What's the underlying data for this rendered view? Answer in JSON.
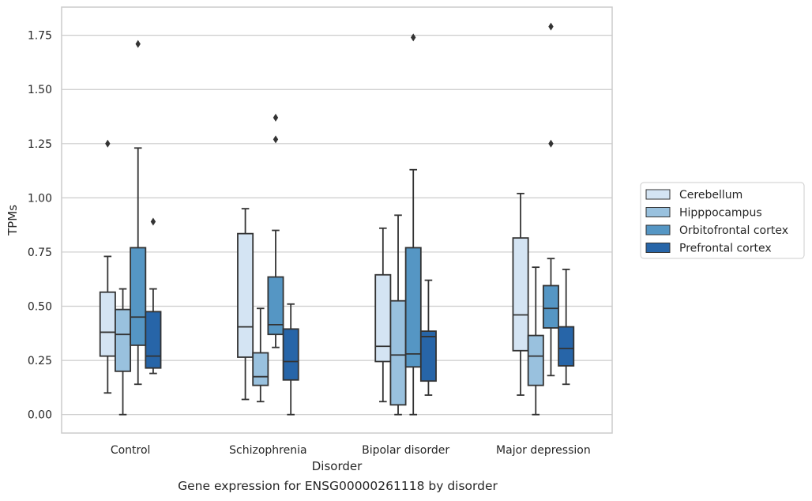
{
  "caption": "Gene expression for ENSG00000261118 by disorder",
  "chart_data": {
    "type": "box",
    "xlabel": "Disorder",
    "ylabel": "TPMs",
    "ylim": [
      -0.085,
      1.88
    ],
    "yticks": [
      "0.00",
      "0.25",
      "0.50",
      "0.75",
      "1.00",
      "1.25",
      "1.50",
      "1.75"
    ],
    "grid": "horizontal",
    "legend_position": "right",
    "categories": [
      "Control",
      "Schizophrenia",
      "Bipolar disorder",
      "Major depression"
    ],
    "series": [
      {
        "name": "Cerebellum",
        "color": "#d4e4f3",
        "boxes": [
          {
            "whislo": 0.1,
            "q1": 0.27,
            "med": 0.38,
            "q3": 0.565,
            "whishi": 0.73,
            "fliers": [
              1.25
            ]
          },
          {
            "whislo": 0.07,
            "q1": 0.265,
            "med": 0.405,
            "q3": 0.835,
            "whishi": 0.95,
            "fliers": []
          },
          {
            "whislo": 0.06,
            "q1": 0.245,
            "med": 0.315,
            "q3": 0.645,
            "whishi": 0.86,
            "fliers": []
          },
          {
            "whislo": 0.09,
            "q1": 0.295,
            "med": 0.46,
            "q3": 0.815,
            "whishi": 1.02,
            "fliers": []
          }
        ]
      },
      {
        "name": "Hipppocampus",
        "color": "#99c1de",
        "boxes": [
          {
            "whislo": 0.0,
            "q1": 0.2,
            "med": 0.37,
            "q3": 0.485,
            "whishi": 0.58,
            "fliers": []
          },
          {
            "whislo": 0.06,
            "q1": 0.135,
            "med": 0.175,
            "q3": 0.285,
            "whishi": 0.49,
            "fliers": []
          },
          {
            "whislo": 0.0,
            "q1": 0.045,
            "med": 0.275,
            "q3": 0.525,
            "whishi": 0.92,
            "fliers": []
          },
          {
            "whislo": 0.0,
            "q1": 0.135,
            "med": 0.27,
            "q3": 0.365,
            "whishi": 0.68,
            "fliers": []
          }
        ]
      },
      {
        "name": "Orbitofrontal cortex",
        "color": "#5596c4",
        "boxes": [
          {
            "whislo": 0.14,
            "q1": 0.32,
            "med": 0.45,
            "q3": 0.77,
            "whishi": 1.23,
            "fliers": [
              1.71
            ]
          },
          {
            "whislo": 0.31,
            "q1": 0.37,
            "med": 0.415,
            "q3": 0.635,
            "whishi": 0.85,
            "fliers": [
              1.27,
              1.37
            ]
          },
          {
            "whislo": 0.0,
            "q1": 0.22,
            "med": 0.28,
            "q3": 0.77,
            "whishi": 1.13,
            "fliers": [
              1.74
            ]
          },
          {
            "whislo": 0.18,
            "q1": 0.4,
            "med": 0.49,
            "q3": 0.595,
            "whishi": 0.72,
            "fliers": [
              1.25,
              1.79
            ]
          }
        ]
      },
      {
        "name": "Prefrontal cortex",
        "color": "#2765a8",
        "boxes": [
          {
            "whislo": 0.19,
            "q1": 0.215,
            "med": 0.27,
            "q3": 0.475,
            "whishi": 0.58,
            "fliers": [
              0.89
            ]
          },
          {
            "whislo": 0.0,
            "q1": 0.16,
            "med": 0.245,
            "q3": 0.395,
            "whishi": 0.51,
            "fliers": []
          },
          {
            "whislo": 0.09,
            "q1": 0.155,
            "med": 0.36,
            "q3": 0.385,
            "whishi": 0.62,
            "fliers": []
          },
          {
            "whislo": 0.14,
            "q1": 0.225,
            "med": 0.305,
            "q3": 0.405,
            "whishi": 0.67,
            "fliers": []
          }
        ]
      }
    ]
  }
}
